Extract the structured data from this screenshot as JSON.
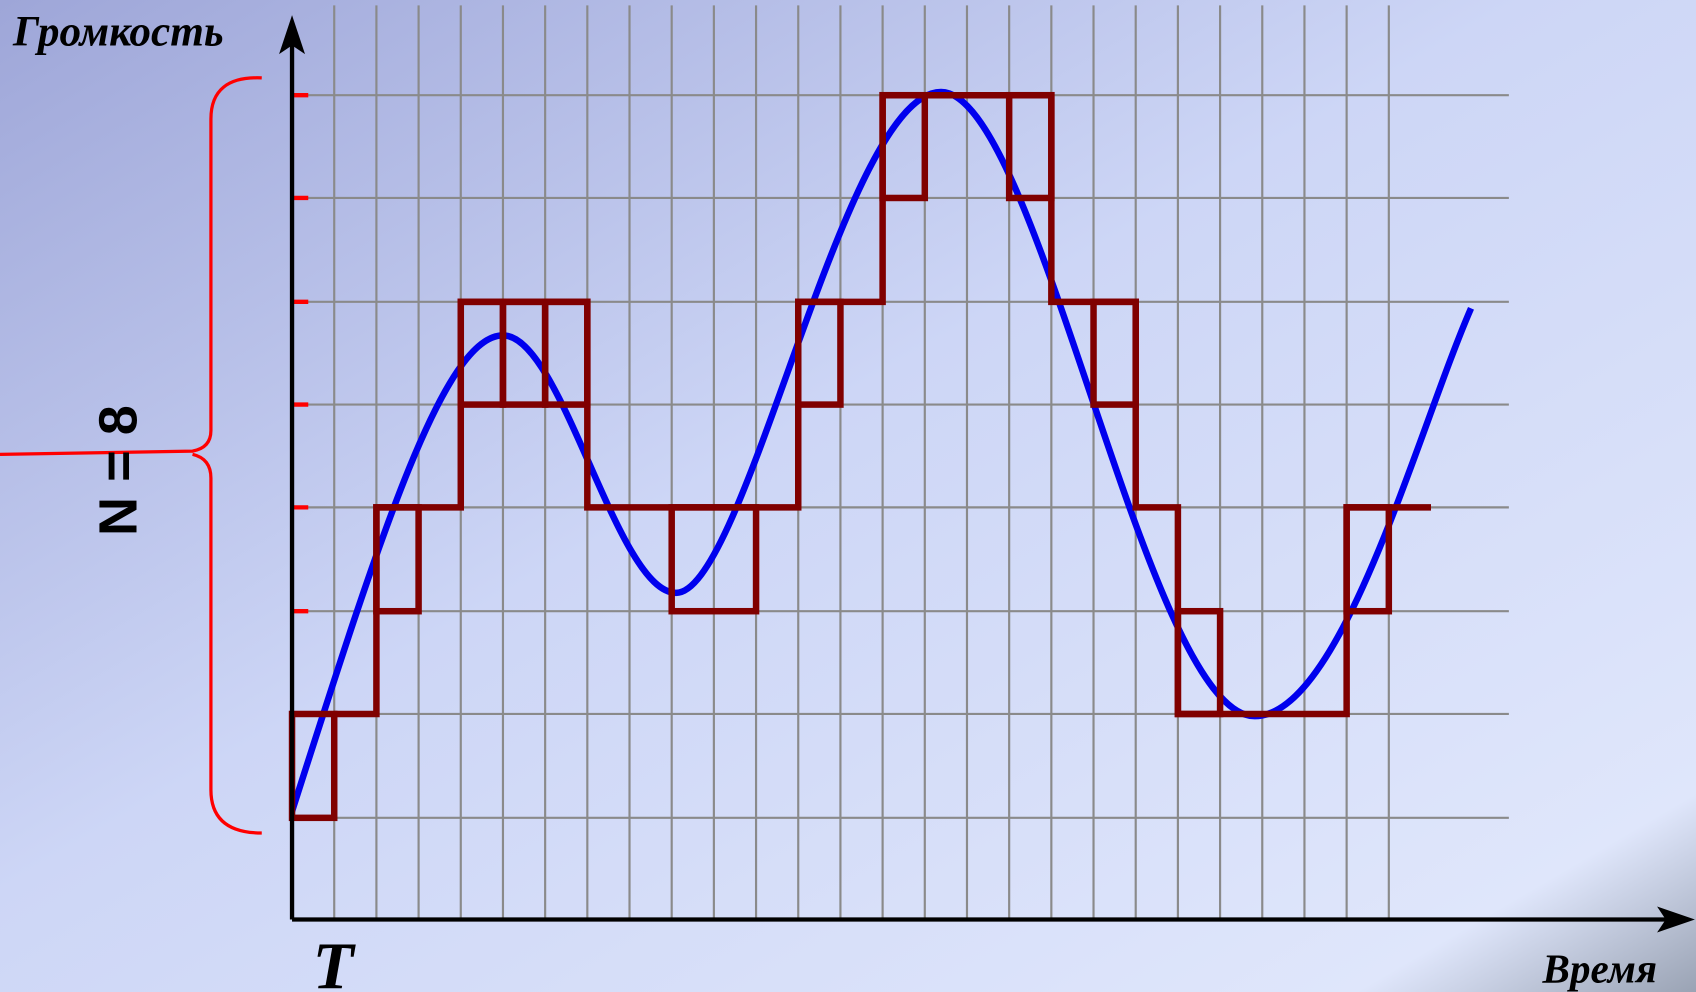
{
  "axes": {
    "y_label": "Громкость",
    "x_label": "Время",
    "period_label": "T"
  },
  "levels_label": "N = 8"
}
